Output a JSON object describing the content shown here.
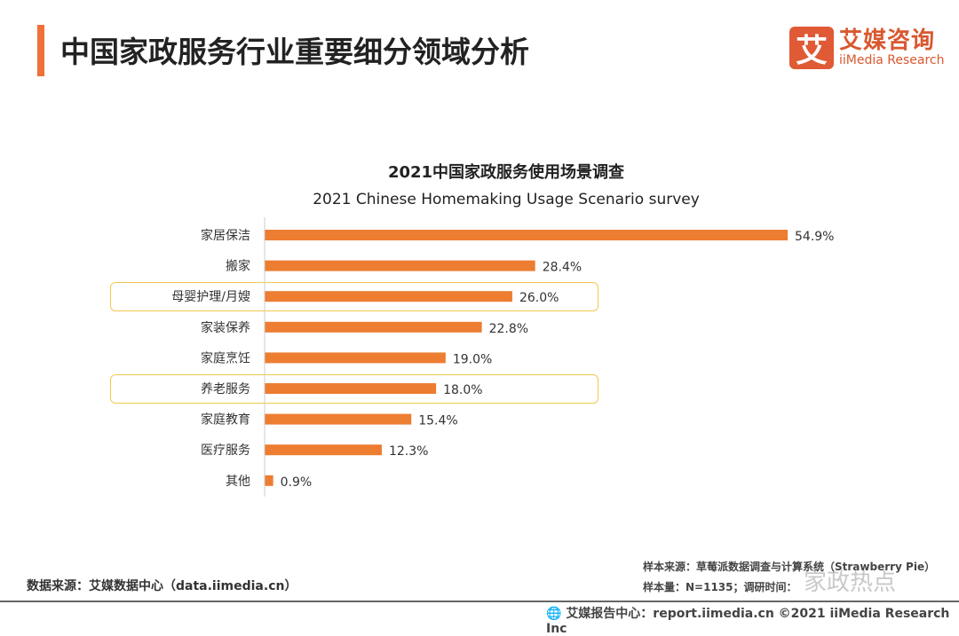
{
  "header": {
    "title": "中国家政服务行业重要细分领域分析",
    "logo_mark": "艾",
    "logo_cn": "艾媒咨询",
    "logo_en": "iiMedia Research"
  },
  "chart_data": {
    "type": "bar",
    "orientation": "horizontal",
    "title": "2021中国家政服务使用场景调查",
    "subtitle": "2021 Chinese Homemaking Usage Scenario survey",
    "categories": [
      "家居保洁",
      "搬家",
      "母婴护理/月嫂",
      "家装保养",
      "家庭烹饪",
      "养老服务",
      "家庭教育",
      "医疗服务",
      "其他"
    ],
    "values": [
      54.9,
      28.4,
      26.0,
      22.8,
      19.0,
      18.0,
      15.4,
      12.3,
      0.9
    ],
    "labels": [
      "54.9%",
      "28.4%",
      "26.0%",
      "22.8%",
      "19.0%",
      "18.0%",
      "15.4%",
      "12.3%",
      "0.9%"
    ],
    "highlighted": [
      "母婴护理/月嫂",
      "养老服务"
    ],
    "bar_color": "#ed7d31",
    "highlight_color": "#f2c94c",
    "grid": false
  },
  "footer": {
    "data_source": "数据来源：艾媒数据中心（data.iimedia.cn）",
    "sample_source": "样本来源：草莓派数据调查与计算系统（Strawberry Pie）",
    "sample_size": "样本量：N=1135；调研时间：",
    "watermark": "家政热点",
    "report": "艾媒报告中心：report.iimedia.cn   ©2021  iiMedia Research  Inc"
  }
}
